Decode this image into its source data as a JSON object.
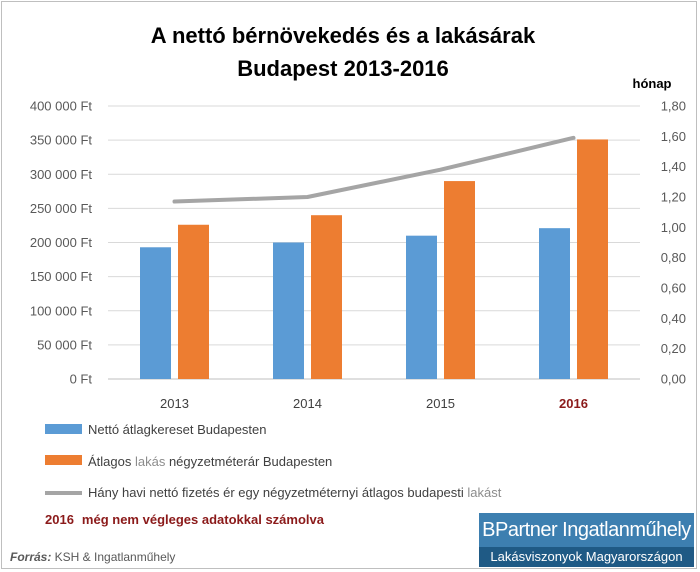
{
  "chart_data": {
    "type": "bar",
    "title_lines": [
      "A nettó bérnövekedés és a lakásárak",
      "Budapest 2013-2016"
    ],
    "categories": [
      "2013",
      "2014",
      "2015",
      "2016"
    ],
    "highlight_category_index": 3,
    "y_left": {
      "min": 0,
      "max": 400000,
      "step": 50000,
      "tick_labels": [
        "0 Ft",
        "50 000 Ft",
        "100 000 Ft",
        "150 000 Ft",
        "200 000 Ft",
        "250 000 Ft",
        "300 000 Ft",
        "350 000 Ft",
        "400 000 Ft"
      ]
    },
    "y_right": {
      "unit_label": "hónap",
      "min": 0,
      "max": 1.8,
      "step": 0.2,
      "tick_labels": [
        "0,00",
        "0,20",
        "0,40",
        "0,60",
        "0,80",
        "1,00",
        "1,20",
        "1,40",
        "1,60",
        "1,80"
      ]
    },
    "grid": true,
    "series": [
      {
        "name": "Nettó átlagkereset Budapesten",
        "kind": "bar",
        "axis": "left",
        "color": "#5b9bd5",
        "values": [
          193000,
          200000,
          210000,
          221000
        ]
      },
      {
        "name_parts": [
          "Átlagos ",
          "lakás",
          "  négyzetméterár Budapesten"
        ],
        "kind": "bar",
        "axis": "left",
        "color": "#ed7d31",
        "values": [
          226000,
          240000,
          290000,
          351000
        ]
      },
      {
        "name_parts": [
          "Hány havi nettó fizetés ér egy négyzetméternyi átlagos budapesti ",
          "lakást"
        ],
        "kind": "line",
        "axis": "right",
        "color": "#a5a5a5",
        "values": [
          1.17,
          1.2,
          1.38,
          1.59
        ]
      }
    ],
    "note": {
      "year": "2016",
      "text": "még nem végleges adatokkal számolva"
    },
    "source": {
      "label": "Forrás:",
      "text": " KSH & Ingatlanműhely"
    }
  },
  "brand": {
    "name": "BPartner Ingatlanműhely",
    "tagline": "Lakásviszonyok Magyarországon"
  }
}
